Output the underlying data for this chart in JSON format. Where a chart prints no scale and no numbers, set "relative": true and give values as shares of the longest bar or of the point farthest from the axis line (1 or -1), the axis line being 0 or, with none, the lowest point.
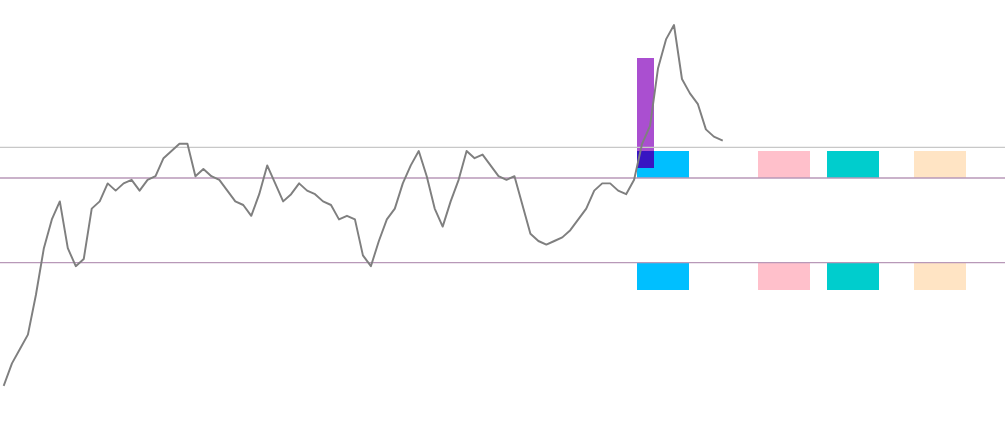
{
  "chart_data": {
    "type": "line",
    "relative": true,
    "legend": false,
    "marker": "none",
    "line_style": "solid",
    "categories": [
      null,
      null,
      null,
      null,
      null,
      null,
      null,
      null,
      null,
      null,
      null,
      null,
      null,
      null,
      null,
      null,
      null,
      null,
      null,
      null,
      null,
      null,
      null,
      null,
      null,
      null,
      null,
      null,
      null,
      null,
      null,
      null,
      null,
      null,
      null,
      null,
      null,
      null,
      null,
      null,
      null,
      null,
      null,
      null,
      null,
      null,
      null,
      null,
      null,
      null,
      null,
      null,
      null,
      null,
      null,
      null,
      null,
      null,
      null,
      null,
      null,
      null,
      null,
      null,
      null,
      null,
      null,
      null,
      null,
      null,
      null,
      null,
      null,
      null,
      null,
      null,
      null,
      null,
      null,
      null,
      null,
      null,
      null,
      null,
      null,
      null,
      null,
      null,
      null,
      null,
      null,
      null,
      null,
      null,
      null,
      null,
      null,
      null,
      null,
      null,
      null,
      null,
      null,
      null,
      null,
      null,
      null,
      null,
      null,
      null,
      null,
      null,
      null,
      null,
      null,
      null,
      null,
      null,
      null,
      null,
      null,
      null,
      null,
      null,
      null,
      null
    ],
    "series": [
      {
        "color": "#7f7f7f",
        "values": [
          0,
          0.06,
          0.1,
          0.14,
          0.25,
          0.38,
          0.46,
          0.51,
          0.38,
          0.33,
          0.35,
          0.49,
          0.51,
          0.56,
          0.54,
          0.56,
          0.57,
          0.54,
          0.57,
          0.58,
          0.63,
          0.65,
          0.67,
          0.67,
          0.58,
          0.6,
          0.58,
          0.57,
          0.54,
          0.51,
          0.5,
          0.47,
          0.53,
          0.61,
          0.56,
          0.51,
          0.53,
          0.56,
          0.54,
          0.53,
          0.51,
          0.5,
          0.46,
          0.47,
          0.46,
          0.36,
          0.33,
          0.4,
          0.46,
          0.49,
          0.56,
          0.61,
          0.65,
          0.58,
          0.49,
          0.44,
          0.51,
          0.57,
          0.65,
          0.63,
          0.64,
          0.61,
          0.58,
          0.57,
          0.58,
          0.5,
          0.42,
          0.4,
          0.39,
          0.4,
          0.41,
          0.43,
          0.46,
          0.49,
          0.54,
          0.56,
          0.56,
          0.54,
          0.53,
          0.57,
          0.67,
          0.72,
          0.88,
          0.96,
          1,
          0.85,
          0.81,
          0.78,
          0.71,
          0.69,
          0.68,
          null,
          null,
          null,
          null,
          null,
          null,
          null,
          null,
          null,
          null,
          null,
          null,
          null,
          null,
          null,
          null,
          null,
          null,
          null,
          null,
          null,
          null,
          null,
          null,
          null,
          null,
          null,
          null,
          null,
          null,
          null,
          null,
          null,
          null,
          null
        ]
      }
    ],
    "ref_lines": [
      {
        "axis": "y",
        "value": 0.66,
        "color": "#c8c8c8",
        "line_style": "solid"
      },
      {
        "axis": "y",
        "value": 0.575,
        "color": "#b898b8",
        "line_style": "solid"
      },
      {
        "axis": "y",
        "value": 0.34,
        "color": "#b898b8",
        "line_style": "solid"
      }
    ]
  }
}
